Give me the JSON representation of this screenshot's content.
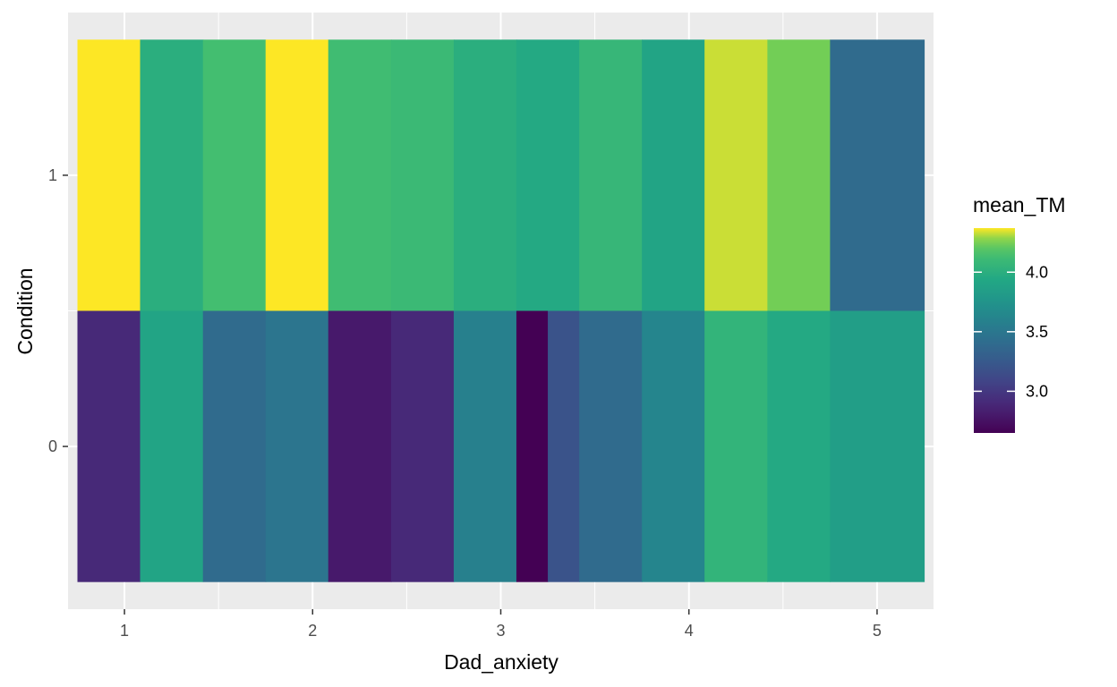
{
  "chart_data": {
    "type": "heatmap",
    "xlabel": "Dad_anxiety",
    "ylabel": "Condition",
    "xlim": [
      0.7,
      5.3
    ],
    "ylim": [
      -0.6,
      1.6
    ],
    "x_ticks": [
      "1",
      "2",
      "3",
      "4",
      "5"
    ],
    "x_tick_values": [
      1,
      2,
      3,
      4,
      5
    ],
    "y_ticks": [
      "0",
      "1"
    ],
    "y_tick_values": [
      0,
      1
    ],
    "legend": {
      "title": "mean_TM",
      "labels": [
        "4.0",
        "3.5",
        "3.0"
      ],
      "label_values": [
        4.0,
        3.5,
        3.0
      ],
      "min": 2.65,
      "max": 4.37,
      "placement": "right"
    },
    "grid": true,
    "tiles": [
      {
        "condition": 1,
        "x_from": 0.75,
        "x_to": 1.083,
        "mean_TM": 4.37
      },
      {
        "condition": 1,
        "x_from": 1.083,
        "x_to": 1.417,
        "mean_TM": 4.0
      },
      {
        "condition": 1,
        "x_from": 1.417,
        "x_to": 1.75,
        "mean_TM": 4.15
      },
      {
        "condition": 1,
        "x_from": 1.75,
        "x_to": 2.083,
        "mean_TM": 4.37
      },
      {
        "condition": 1,
        "x_from": 2.083,
        "x_to": 2.417,
        "mean_TM": 4.13
      },
      {
        "condition": 1,
        "x_from": 2.417,
        "x_to": 2.75,
        "mean_TM": 4.1
      },
      {
        "condition": 1,
        "x_from": 2.75,
        "x_to": 3.083,
        "mean_TM": 4.0
      },
      {
        "condition": 1,
        "x_from": 3.083,
        "x_to": 3.417,
        "mean_TM": 3.95
      },
      {
        "condition": 1,
        "x_from": 3.417,
        "x_to": 3.75,
        "mean_TM": 4.07
      },
      {
        "condition": 1,
        "x_from": 3.75,
        "x_to": 4.083,
        "mean_TM": 3.9
      },
      {
        "condition": 1,
        "x_from": 4.083,
        "x_to": 4.417,
        "mean_TM": 4.33
      },
      {
        "condition": 1,
        "x_from": 4.417,
        "x_to": 4.75,
        "mean_TM": 4.25
      },
      {
        "condition": 1,
        "x_from": 4.75,
        "x_to": 5.25,
        "mean_TM": 3.4
      },
      {
        "condition": 0,
        "x_from": 0.75,
        "x_to": 1.083,
        "mean_TM": 2.9
      },
      {
        "condition": 0,
        "x_from": 1.083,
        "x_to": 1.417,
        "mean_TM": 3.9
      },
      {
        "condition": 0,
        "x_from": 1.417,
        "x_to": 1.75,
        "mean_TM": 3.4
      },
      {
        "condition": 0,
        "x_from": 1.75,
        "x_to": 2.083,
        "mean_TM": 3.48
      },
      {
        "condition": 0,
        "x_from": 2.083,
        "x_to": 2.417,
        "mean_TM": 2.8
      },
      {
        "condition": 0,
        "x_from": 2.417,
        "x_to": 2.75,
        "mean_TM": 2.9
      },
      {
        "condition": 0,
        "x_from": 2.75,
        "x_to": 3.083,
        "mean_TM": 3.58
      },
      {
        "condition": 0,
        "x_from": 3.083,
        "x_to": 3.25,
        "mean_TM": 2.65
      },
      {
        "condition": 0,
        "x_from": 3.25,
        "x_to": 3.417,
        "mean_TM": 3.2
      },
      {
        "condition": 0,
        "x_from": 3.417,
        "x_to": 3.75,
        "mean_TM": 3.4
      },
      {
        "condition": 0,
        "x_from": 3.75,
        "x_to": 4.083,
        "mean_TM": 3.62
      },
      {
        "condition": 0,
        "x_from": 4.083,
        "x_to": 4.417,
        "mean_TM": 4.05
      },
      {
        "condition": 0,
        "x_from": 4.417,
        "x_to": 4.75,
        "mean_TM": 3.95
      },
      {
        "condition": 0,
        "x_from": 4.75,
        "x_to": 5.25,
        "mean_TM": 3.85
      }
    ]
  }
}
